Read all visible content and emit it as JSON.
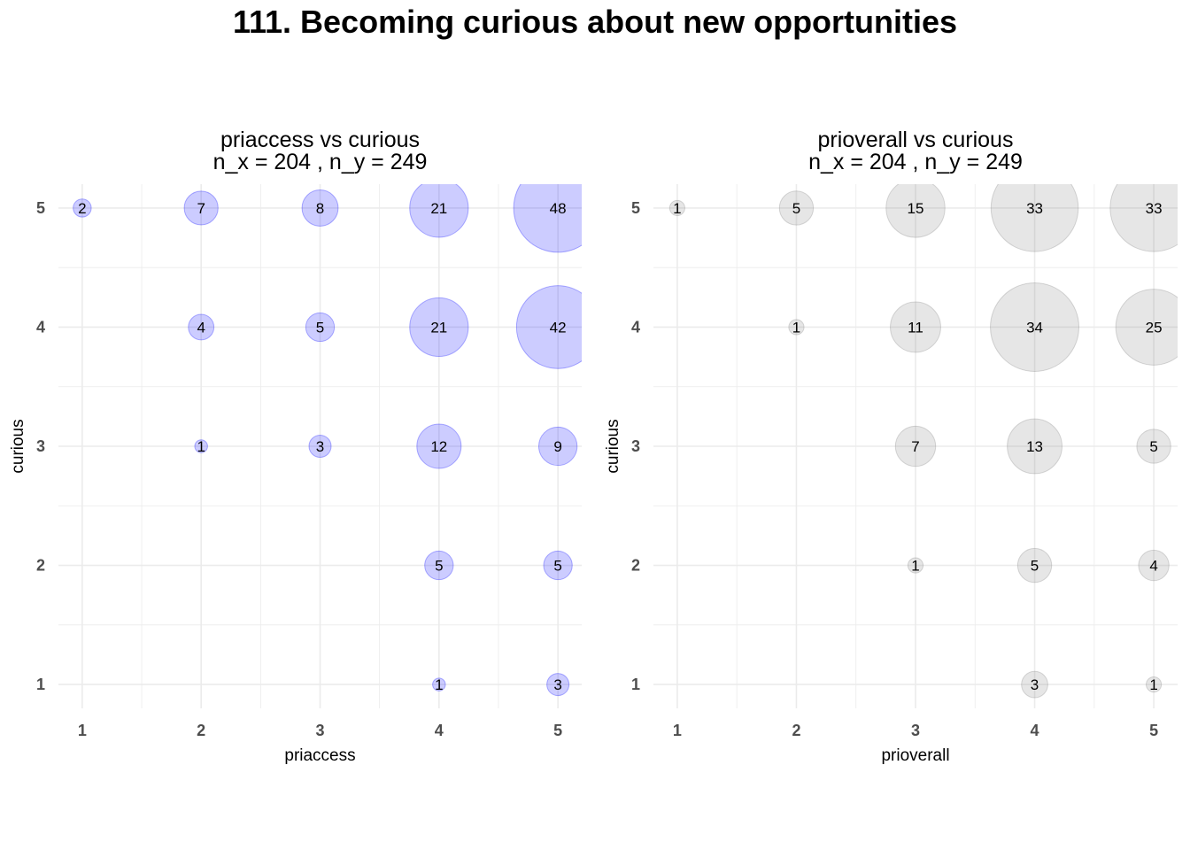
{
  "title": "111. Becoming curious about new opportunities",
  "colors": {
    "left_fill": "#0000ff",
    "right_fill": "#808080",
    "grid": "#ebebeb",
    "text": "#000000",
    "tick": "#4d4d4d"
  },
  "chart_data": [
    {
      "type": "scatter",
      "title": "priaccess vs curious",
      "subtitle": "n_x = 204 , n_y = 249",
      "xlabel": "priaccess",
      "ylabel": "curious",
      "xticks": [
        "1",
        "2",
        "3",
        "4",
        "5"
      ],
      "yticks": [
        "1",
        "2",
        "3",
        "4",
        "5"
      ],
      "xlim": [
        0.8,
        5.2
      ],
      "ylim": [
        0.8,
        5.2
      ],
      "grid": true,
      "marker_color": "#0000ff",
      "points": [
        {
          "x": 1,
          "y": 5,
          "n": 2
        },
        {
          "x": 2,
          "y": 5,
          "n": 7
        },
        {
          "x": 3,
          "y": 5,
          "n": 8
        },
        {
          "x": 4,
          "y": 5,
          "n": 21
        },
        {
          "x": 5,
          "y": 5,
          "n": 48
        },
        {
          "x": 2,
          "y": 4,
          "n": 4
        },
        {
          "x": 3,
          "y": 4,
          "n": 5
        },
        {
          "x": 4,
          "y": 4,
          "n": 21
        },
        {
          "x": 5,
          "y": 4,
          "n": 42
        },
        {
          "x": 2,
          "y": 3,
          "n": 1
        },
        {
          "x": 3,
          "y": 3,
          "n": 3
        },
        {
          "x": 4,
          "y": 3,
          "n": 12
        },
        {
          "x": 5,
          "y": 3,
          "n": 9
        },
        {
          "x": 4,
          "y": 2,
          "n": 5
        },
        {
          "x": 5,
          "y": 2,
          "n": 5
        },
        {
          "x": 4,
          "y": 1,
          "n": 1
        },
        {
          "x": 5,
          "y": 1,
          "n": 3
        }
      ]
    },
    {
      "type": "scatter",
      "title": "prioverall vs curious",
      "subtitle": "n_x = 204 , n_y = 249",
      "xlabel": "prioverall",
      "ylabel": "curious",
      "xticks": [
        "1",
        "2",
        "3",
        "4",
        "5"
      ],
      "yticks": [
        "1",
        "2",
        "3",
        "4",
        "5"
      ],
      "xlim": [
        0.8,
        5.2
      ],
      "ylim": [
        0.8,
        5.2
      ],
      "grid": true,
      "marker_color": "#808080",
      "points": [
        {
          "x": 1,
          "y": 5,
          "n": 1
        },
        {
          "x": 2,
          "y": 5,
          "n": 5
        },
        {
          "x": 3,
          "y": 5,
          "n": 15
        },
        {
          "x": 4,
          "y": 5,
          "n": 33
        },
        {
          "x": 5,
          "y": 5,
          "n": 33
        },
        {
          "x": 2,
          "y": 4,
          "n": 1
        },
        {
          "x": 3,
          "y": 4,
          "n": 11
        },
        {
          "x": 4,
          "y": 4,
          "n": 34
        },
        {
          "x": 5,
          "y": 4,
          "n": 25
        },
        {
          "x": 3,
          "y": 3,
          "n": 7
        },
        {
          "x": 4,
          "y": 3,
          "n": 13
        },
        {
          "x": 5,
          "y": 3,
          "n": 5
        },
        {
          "x": 3,
          "y": 2,
          "n": 1
        },
        {
          "x": 4,
          "y": 2,
          "n": 5
        },
        {
          "x": 5,
          "y": 2,
          "n": 4
        },
        {
          "x": 4,
          "y": 1,
          "n": 3
        },
        {
          "x": 5,
          "y": 1,
          "n": 1
        }
      ]
    }
  ]
}
